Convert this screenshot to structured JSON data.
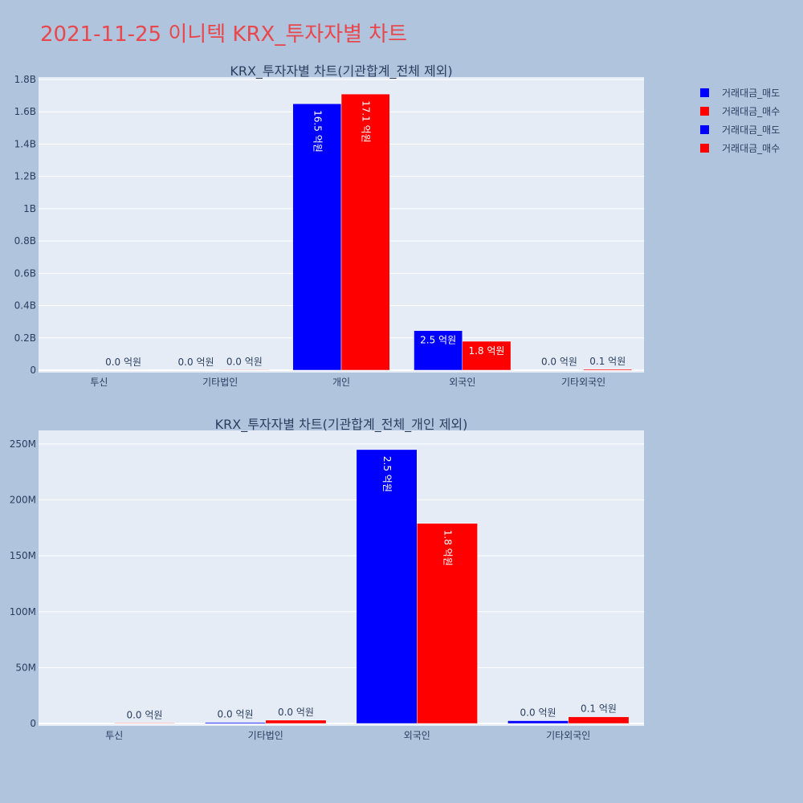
{
  "page": {
    "title": "2021-11-25 이니텍 KRX_투자자별 차트",
    "title_color": "#e8474c",
    "background": "#b0c4de",
    "plot_background": "#e5ecf6"
  },
  "legend": [
    {
      "label": "거래대금_매도",
      "color": "#0000ff"
    },
    {
      "label": "거래대금_매수",
      "color": "#ff0000"
    },
    {
      "label": "거래대금_매도",
      "color": "#0000ff"
    },
    {
      "label": "거래대금_매수",
      "color": "#ff0000"
    }
  ],
  "chart_data": [
    {
      "type": "bar",
      "title": "KRX_투자자별 차트(기관합계_전체 제외)",
      "categories": [
        "투신",
        "기타법인",
        "개인",
        "외국인",
        "기타외국인"
      ],
      "series": [
        {
          "name": "거래대금_매도",
          "color": "#0000ff",
          "values": [
            0,
            1000000,
            1650000000,
            245000000,
            2500000
          ],
          "labels": [
            "",
            "0.0 억원",
            "16.5 억원",
            "2.5 억원",
            "0.0 억원"
          ]
        },
        {
          "name": "거래대금_매수",
          "color": "#ff0000",
          "values": [
            500000,
            3000000,
            1710000000,
            179000000,
            6000000
          ],
          "labels": [
            "0.0 억원",
            "0.0 억원",
            "17.1 억원",
            "1.8 억원",
            "0.1 억원"
          ]
        }
      ],
      "ylim": [
        0,
        1800000000
      ],
      "yticks": [
        0,
        200000000,
        400000000,
        600000000,
        800000000,
        1000000000,
        1200000000,
        1400000000,
        1600000000,
        1800000000
      ],
      "ytick_labels": [
        "0",
        "0.2B",
        "0.4B",
        "0.6B",
        "0.8B",
        "1B",
        "1.2B",
        "1.4B",
        "1.6B",
        "1.8B"
      ],
      "grid": true
    },
    {
      "type": "bar",
      "title": "KRX_투자자별 차트(기관합계_전체_개인 제외)",
      "categories": [
        "투신",
        "기타법인",
        "외국인",
        "기타외국인"
      ],
      "series": [
        {
          "name": "거래대금_매도",
          "color": "#0000ff",
          "values": [
            0,
            1000000,
            245000000,
            2500000
          ],
          "labels": [
            "",
            "0.0 억원",
            "2.5 억원",
            "0.0 억원"
          ]
        },
        {
          "name": "거래대금_매수",
          "color": "#ff0000",
          "values": [
            500000,
            3000000,
            179000000,
            6000000
          ],
          "labels": [
            "0.0 억원",
            "0.0 억원",
            "1.8 억원",
            "0.1 억원"
          ]
        }
      ],
      "ylim": [
        0,
        260000000
      ],
      "yticks": [
        0,
        50000000,
        100000000,
        150000000,
        200000000,
        250000000
      ],
      "ytick_labels": [
        "0",
        "50M",
        "100M",
        "150M",
        "200M",
        "250M"
      ],
      "grid": true
    }
  ]
}
